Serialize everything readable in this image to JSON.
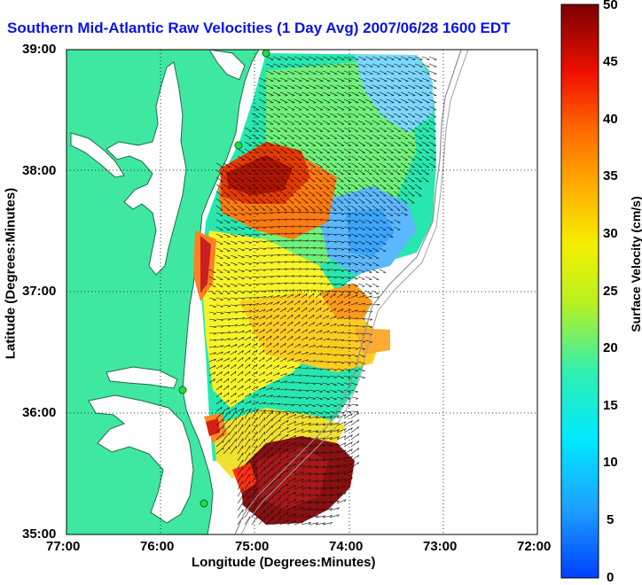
{
  "title": "Southern Mid-Atlantic Raw Velocities (1 Day Avg) 2007/06/28 1600 EDT",
  "x_axis": {
    "label": "Longitude (Degrees:Minutes)",
    "ticks": [
      "77:00",
      "76:00",
      "75:00",
      "74:00",
      "73:00",
      "72:00"
    ]
  },
  "y_axis": {
    "label": "Latitude (Degrees:Minutes)",
    "ticks": [
      "39:00",
      "38:00",
      "37:00",
      "36:00",
      "35:00"
    ]
  },
  "colorbar": {
    "label": "Surface Velocity (cm/s)",
    "ticks": [
      "50",
      "45",
      "40",
      "35",
      "30",
      "25",
      "20",
      "15",
      "10",
      "5",
      "0"
    ],
    "min": 0,
    "max": 50
  },
  "colors": {
    "land": "#3fe8a0",
    "coast": "#1e6a4a",
    "title": "#0a14e6"
  }
}
